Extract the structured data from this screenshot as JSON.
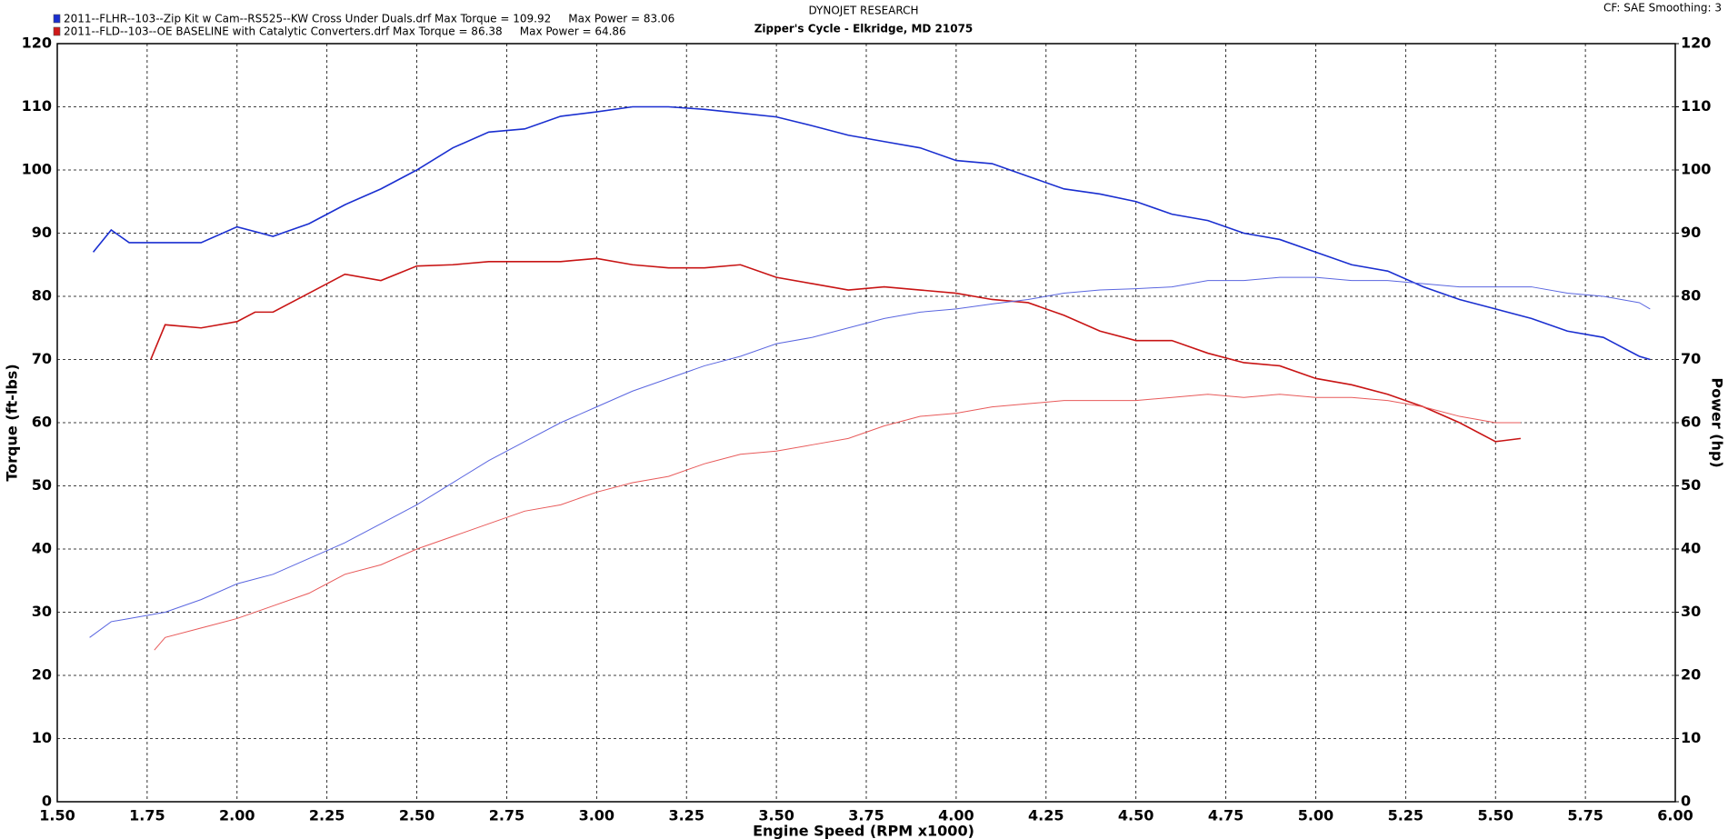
{
  "chart_data": {
    "type": "line",
    "title": "DYNOJET RESEARCH",
    "subtitle": "Zipper's Cycle - Elkridge, MD 21075",
    "settings_note": "CF: SAE  Smoothing: 3",
    "x_label": "Engine Speed (RPM x1000)",
    "y_label": "Torque (ft-lbs)",
    "y2_label": "Power (hp)",
    "legend": [
      {
        "label": "2011--FLHR--103--Zip Kit w Cam--RS525--KW Cross Under Duals.drf Max Torque = 109.92     Max Power = 83.06",
        "color": "#1a2fd0"
      },
      {
        "label": "2011--FLD--103--OE BASELINE with Catalytic Converters.drf Max Torque = 86.38     Max Power = 64.86",
        "color": "#d01a1a"
      }
    ],
    "grid": true,
    "xlim": [
      1.5,
      6.0
    ],
    "xticks": [
      {
        "value": 1.5,
        "label": "1.50"
      },
      {
        "value": 1.75,
        "label": "1.75"
      },
      {
        "value": 2.0,
        "label": "2.00"
      },
      {
        "value": 2.25,
        "label": "2.25"
      },
      {
        "value": 2.5,
        "label": "2.50"
      },
      {
        "value": 2.75,
        "label": "2.75"
      },
      {
        "value": 3.0,
        "label": "3.00"
      },
      {
        "value": 3.25,
        "label": "3.25"
      },
      {
        "value": 3.5,
        "label": "3.50"
      },
      {
        "value": 3.75,
        "label": "3.75"
      },
      {
        "value": 4.0,
        "label": "4.00"
      },
      {
        "value": 4.25,
        "label": "4.25"
      },
      {
        "value": 4.5,
        "label": "4.50"
      },
      {
        "value": 4.75,
        "label": "4.75"
      },
      {
        "value": 5.0,
        "label": "5.00"
      },
      {
        "value": 5.25,
        "label": "5.25"
      },
      {
        "value": 5.5,
        "label": "5.50"
      },
      {
        "value": 5.75,
        "label": "5.75"
      },
      {
        "value": 6.0,
        "label": "6.00"
      }
    ],
    "ylim": [
      0,
      120
    ],
    "yticks": [
      0,
      10,
      20,
      30,
      40,
      50,
      60,
      70,
      80,
      90,
      100,
      110,
      120
    ],
    "y2lim": [
      0,
      120
    ],
    "y2ticks": [
      0,
      10,
      20,
      30,
      40,
      50,
      60,
      70,
      80,
      90,
      100,
      110,
      120
    ],
    "series": [
      {
        "color": "#1a2fd0",
        "width": 1.6,
        "x": [
          1.6,
          1.65,
          1.7,
          1.8,
          1.9,
          2.0,
          2.1,
          2.2,
          2.3,
          2.4,
          2.5,
          2.6,
          2.7,
          2.8,
          2.9,
          3.0,
          3.1,
          3.2,
          3.3,
          3.4,
          3.5,
          3.6,
          3.7,
          3.8,
          3.9,
          4.0,
          4.1,
          4.2,
          4.3,
          4.4,
          4.5,
          4.6,
          4.7,
          4.8,
          4.9,
          5.0,
          5.1,
          5.2,
          5.3,
          5.4,
          5.5,
          5.6,
          5.7,
          5.8,
          5.9,
          5.93
        ],
        "values": [
          87,
          90.5,
          88.5,
          88.5,
          88.5,
          91,
          89.5,
          91.5,
          94.5,
          97,
          100,
          103.5,
          106,
          106.5,
          108.5,
          109.2,
          110,
          110,
          109.6,
          109,
          108.4,
          107,
          105.5,
          104.5,
          103.5,
          101.5,
          101,
          99,
          97,
          96.2,
          95,
          93,
          92,
          90,
          89,
          87,
          85,
          84,
          81.5,
          79.5,
          78,
          76.5,
          74.5,
          73.5,
          70.5,
          70
        ]
      },
      {
        "color": "#c81414",
        "width": 1.6,
        "x": [
          1.76,
          1.8,
          1.9,
          2.0,
          2.05,
          2.1,
          2.2,
          2.3,
          2.4,
          2.5,
          2.6,
          2.7,
          2.8,
          2.9,
          3.0,
          3.1,
          3.2,
          3.3,
          3.4,
          3.5,
          3.6,
          3.7,
          3.8,
          3.9,
          4.0,
          4.1,
          4.2,
          4.3,
          4.4,
          4.5,
          4.6,
          4.7,
          4.8,
          4.9,
          5.0,
          5.1,
          5.2,
          5.3,
          5.4,
          5.5,
          5.57
        ],
        "values": [
          70,
          75.5,
          75,
          76,
          77.5,
          77.5,
          80.5,
          83.5,
          82.5,
          84.8,
          85,
          85.5,
          85.5,
          85.5,
          86,
          85,
          84.5,
          84.5,
          85,
          83,
          82,
          81,
          81.5,
          81,
          80.5,
          79.5,
          79,
          77,
          74.5,
          73,
          73,
          71,
          69.5,
          69,
          67,
          66,
          64.5,
          62.5,
          60,
          57,
          57.5
        ]
      },
      {
        "color": "#5a66e0",
        "width": 1,
        "axis": "y2",
        "x": [
          1.59,
          1.65,
          1.7,
          1.8,
          1.9,
          2.0,
          2.1,
          2.2,
          2.3,
          2.4,
          2.5,
          2.6,
          2.7,
          2.8,
          2.9,
          3.0,
          3.1,
          3.2,
          3.3,
          3.4,
          3.5,
          3.6,
          3.7,
          3.8,
          3.9,
          4.0,
          4.1,
          4.2,
          4.3,
          4.4,
          4.5,
          4.6,
          4.7,
          4.8,
          4.9,
          5.0,
          5.1,
          5.2,
          5.3,
          5.4,
          5.5,
          5.6,
          5.7,
          5.8,
          5.9,
          5.93
        ],
        "values": [
          26,
          28.5,
          29,
          30,
          32,
          34.5,
          36,
          38.5,
          41,
          44,
          47,
          50.5,
          54,
          57,
          60,
          62.5,
          65,
          67,
          69,
          70.5,
          72.5,
          73.5,
          75,
          76.5,
          77.5,
          78,
          78.8,
          79.5,
          80.5,
          81,
          81.2,
          81.5,
          82.5,
          82.5,
          83,
          83,
          82.5,
          82.5,
          82,
          81.5,
          81.5,
          81.5,
          80.5,
          80,
          79,
          78
        ]
      },
      {
        "color": "#e85a5a",
        "width": 1,
        "axis": "y2",
        "x": [
          1.77,
          1.8,
          1.9,
          2.0,
          2.1,
          2.2,
          2.3,
          2.4,
          2.5,
          2.6,
          2.7,
          2.8,
          2.9,
          3.0,
          3.1,
          3.2,
          3.3,
          3.4,
          3.5,
          3.6,
          3.7,
          3.8,
          3.9,
          4.0,
          4.1,
          4.2,
          4.3,
          4.4,
          4.5,
          4.6,
          4.7,
          4.8,
          4.9,
          5.0,
          5.1,
          5.2,
          5.3,
          5.4,
          5.5,
          5.57
        ],
        "values": [
          24,
          26,
          27.5,
          29,
          31,
          33,
          36,
          37.5,
          40,
          42,
          44,
          46,
          47,
          49,
          50.5,
          51.5,
          53.5,
          55,
          55.5,
          56.5,
          57.5,
          59.5,
          61,
          61.5,
          62.5,
          63,
          63.5,
          63.5,
          63.5,
          64,
          64.5,
          64,
          64.5,
          64,
          64,
          63.5,
          62.5,
          61,
          60,
          60
        ]
      }
    ]
  }
}
